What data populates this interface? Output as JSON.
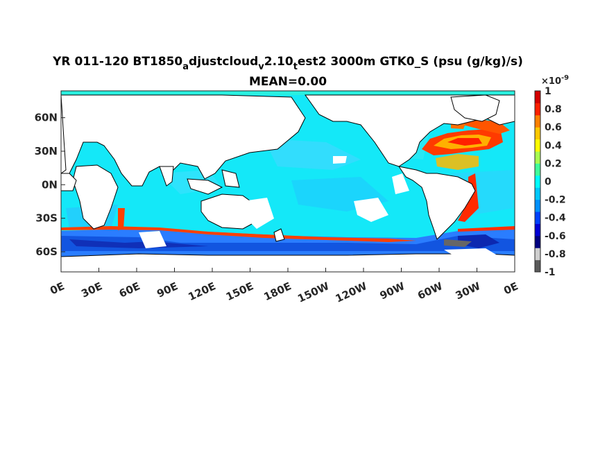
{
  "chart_data": {
    "type": "heatmap",
    "title_parts": [
      {
        "text": "YR 011-120 BT1850",
        "sub": false
      },
      {
        "text": "a",
        "sub": true
      },
      {
        "text": "djustcloud",
        "sub": false
      },
      {
        "text": "v",
        "sub": true
      },
      {
        "text": "2.10",
        "sub": false
      },
      {
        "text": "t",
        "sub": true
      },
      {
        "text": "est2 3000m GTK0_S (psu (g/kg)/s)",
        "sub": false
      }
    ],
    "subtitle": "MEAN=0.00",
    "x_ticks": [
      "0E",
      "30E",
      "60E",
      "90E",
      "120E",
      "150E",
      "180E",
      "150W",
      "120W",
      "90W",
      "60W",
      "30W",
      "0E"
    ],
    "y_ticks": [
      "60N",
      "30N",
      "0N",
      "30S",
      "60S"
    ],
    "y_tick_values": [
      60,
      30,
      0,
      -30,
      -60
    ],
    "xlim": [
      0,
      360
    ],
    "ylim": [
      -78,
      84
    ],
    "colorbar": {
      "exponent_label": "×10",
      "exponent": "-9",
      "ticks": [
        "1",
        "0.8",
        "0.6",
        "0.4",
        "0.2",
        "0",
        "-0.2",
        "-0.4",
        "-0.6",
        "-0.8",
        "-1"
      ],
      "tick_values": [
        1,
        0.8,
        0.6,
        0.4,
        0.2,
        0,
        -0.2,
        -0.4,
        -0.6,
        -0.8,
        -1
      ],
      "range": [
        -1,
        1
      ],
      "colors": [
        "#5a5a5a",
        "#cfcfcf",
        "#00007f",
        "#0000d4",
        "#0040ff",
        "#0090ff",
        "#00c8ff",
        "#00ffff",
        "#40ff9a",
        "#a8ff50",
        "#ffff00",
        "#ffc800",
        "#ff8000",
        "#ff2000",
        "#d40000"
      ]
    },
    "mean_value": 0.0,
    "colors": {
      "ocean_base": "#14e8f8",
      "land": "#ffffff",
      "coast": "#000000"
    }
  }
}
